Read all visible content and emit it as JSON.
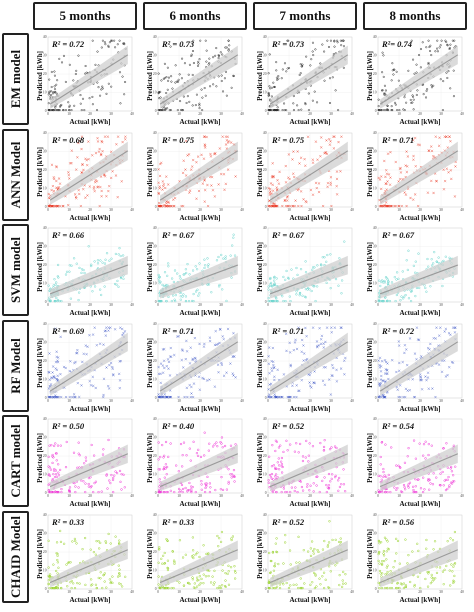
{
  "columns": [
    "5 months",
    "6 months",
    "7 months",
    "8 months"
  ],
  "rows": [
    "EM model",
    "ANN Model",
    "SVM model",
    "RF Model",
    "CART model",
    "CHAID Model"
  ],
  "xlabel": "Actual [kWh]",
  "ylabel": "Predicted [kWh]",
  "colors": {
    "EM model": "#222222",
    "ANN Model": "#e8321e",
    "SVM model": "#6fd6cf",
    "RF Model": "#3f57c4",
    "CART model": "#f03cd8",
    "CHAID Model": "#9bd432",
    "fit_line": "#9a9a9a",
    "fit_band": "#cfcfcf"
  },
  "chart_data": {
    "type": "scatter",
    "xlabel": "Actual [kWh]",
    "ylabel": "Predicted [kWh]",
    "xlim": [
      0,
      40
    ],
    "ylim": [
      0,
      40
    ],
    "x_ticks": [
      "0",
      "10",
      "20",
      "30",
      "40"
    ],
    "y_ticks": [
      "0",
      "10",
      "20",
      "30",
      "40"
    ],
    "grid": true,
    "panels": [
      {
        "model": "EM model",
        "period": "5 months",
        "r2_label": "R² = 0.72",
        "r2": 0.72
      },
      {
        "model": "EM model",
        "period": "6 months",
        "r2_label": "R² = 0.73",
        "r2": 0.73
      },
      {
        "model": "EM model",
        "period": "7 months",
        "r2_label": "R² = 0.73",
        "r2": 0.73
      },
      {
        "model": "EM model",
        "period": "8 months",
        "r2_label": "R²= 0.74",
        "r2": 0.74
      },
      {
        "model": "ANN Model",
        "period": "5 months",
        "r2_label": "R² = 0.68",
        "r2": 0.68
      },
      {
        "model": "ANN Model",
        "period": "6 months",
        "r2_label": "R² = 0.75",
        "r2": 0.75
      },
      {
        "model": "ANN Model",
        "period": "7 months",
        "r2_label": "R² = 0.75",
        "r2": 0.75
      },
      {
        "model": "ANN Model",
        "period": "8 months",
        "r2_label": "R² = 0.71",
        "r2": 0.71
      },
      {
        "model": "SVM model",
        "period": "5 months",
        "r2_label": "R² = 0.66",
        "r2": 0.66
      },
      {
        "model": "SVM model",
        "period": "6 months",
        "r2_label": "R² = 0.67",
        "r2": 0.67
      },
      {
        "model": "SVM model",
        "period": "7 months",
        "r2_label": "R² = 0.67",
        "r2": 0.67
      },
      {
        "model": "SVM model",
        "period": "8 months",
        "r2_label": "R² = 0.67",
        "r2": 0.67
      },
      {
        "model": "RF Model",
        "period": "5 months",
        "r2_label": "R² = 0.69",
        "r2": 0.69
      },
      {
        "model": "RF Model",
        "period": "6 months",
        "r2_label": "R² = 0.71",
        "r2": 0.71
      },
      {
        "model": "RF Model",
        "period": "7 months",
        "r2_label": "R² = 0.71",
        "r2": 0.71
      },
      {
        "model": "RF Model",
        "period": "8 months",
        "r2_label": "R² = 0.72",
        "r2": 0.72
      },
      {
        "model": "CART model",
        "period": "5 months",
        "r2_label": "R² = 0.50",
        "r2": 0.5
      },
      {
        "model": "CART model",
        "period": "6 months",
        "r2_label": "R² = 0.40",
        "r2": 0.4
      },
      {
        "model": "CART model",
        "period": "7 months",
        "r2_label": "R² = 0.52",
        "r2": 0.52
      },
      {
        "model": "CART model",
        "period": "8 months",
        "r2_label": "R² = 0.54",
        "r2": 0.54
      },
      {
        "model": "CHAID Model",
        "period": "5 months",
        "r2_label": "R² = 0.33",
        "r2": 0.33
      },
      {
        "model": "CHAID Model",
        "period": "6 months",
        "r2_label": "R² = 0.33",
        "r2": 0.33
      },
      {
        "model": "CHAID Model",
        "period": "7 months",
        "r2_label": "R² = 0.52",
        "r2": 0.52
      },
      {
        "model": "CHAID Model",
        "period": "8 months",
        "r2_label": "R² = 0.56",
        "r2": 0.56
      }
    ]
  }
}
